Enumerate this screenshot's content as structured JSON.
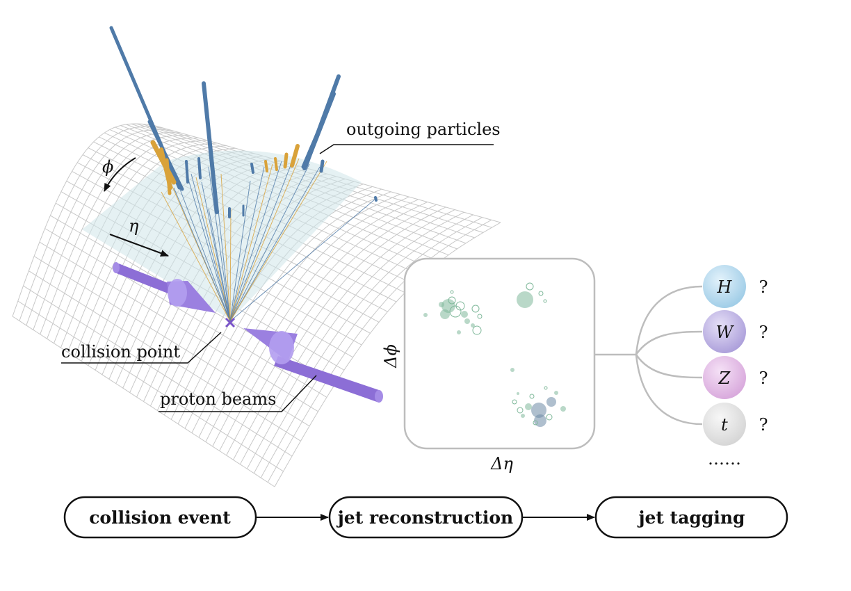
{
  "detector": {
    "labels": {
      "outgoing": "outgoing particles",
      "collision": "collision point",
      "beams": "proton beams",
      "phi": "ϕ",
      "eta": "η"
    },
    "colors": {
      "track_blue": "#4f7aa8",
      "track_gold": "#d9a23a",
      "beam_purple": "#8c6ed6",
      "grid": "#c8c8c8",
      "sheet": "#cfe6ea"
    }
  },
  "jet_image": {
    "xlabel": "Δη",
    "ylabel": "Δϕ",
    "colors": {
      "particle_green": "#7fb89a",
      "particle_slate": "#6e8aa6"
    }
  },
  "classes": [
    {
      "symbol": "H",
      "question": "?",
      "color": "#9ccbe6"
    },
    {
      "symbol": "W",
      "question": "?",
      "color": "#a99cd9"
    },
    {
      "symbol": "Z",
      "question": "?",
      "color": "#d7a6db"
    },
    {
      "symbol": "t",
      "question": "?",
      "color": "#d9d9d9"
    }
  ],
  "more": "……",
  "pipeline": [
    {
      "label": "collision event"
    },
    {
      "label": "jet reconstruction"
    },
    {
      "label": "jet tagging"
    }
  ]
}
